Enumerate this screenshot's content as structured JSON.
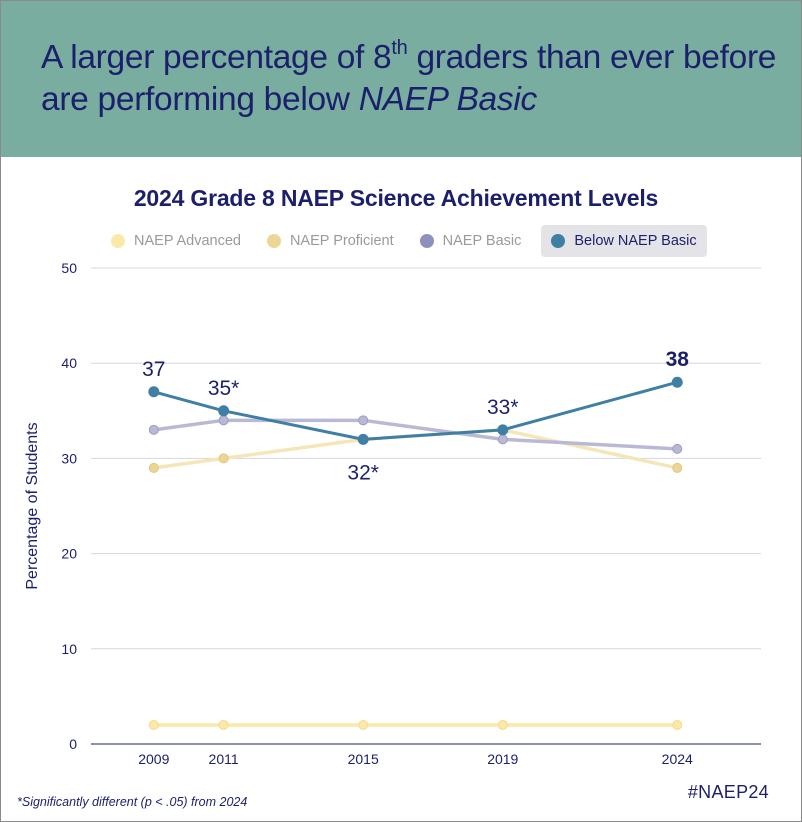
{
  "headline": {
    "part1": "A larger percentage of 8",
    "sup": "th",
    "part2": " graders than ever before are performing below ",
    "italic": "NAEP Basic"
  },
  "footnote": "*Significantly different (p < .05) from 2024",
  "hashtag": "#NAEP24",
  "colors": {
    "banner": "#78ada0",
    "navy": "#1c1f6b",
    "advanced": "#fae9a8",
    "proficient": "#ecd695",
    "basic": "#b9b9d6",
    "below_basic": "#3f7fa3"
  },
  "chart_data": {
    "type": "line",
    "title": "2024 Grade 8 NAEP Science Achievement Levels",
    "ylabel": "Percentage of Students",
    "xlabel": "",
    "ylim": [
      0,
      50
    ],
    "yticks": [
      0,
      10,
      20,
      30,
      40,
      50
    ],
    "x": [
      2009,
      2011,
      2015,
      2019,
      2024
    ],
    "legend_position": "top",
    "highlighted_series": "Below NAEP Basic",
    "series": [
      {
        "name": "NAEP Advanced",
        "color": "#fae9a8",
        "values": [
          2,
          2,
          2,
          2,
          2
        ]
      },
      {
        "name": "NAEP Proficient",
        "color": "#ecd695",
        "values": [
          29,
          30,
          32,
          33,
          29
        ]
      },
      {
        "name": "NAEP Basic",
        "color": "#b9b9d6",
        "values": [
          33,
          34,
          34,
          32,
          31
        ]
      },
      {
        "name": "Below NAEP Basic",
        "color": "#3f7fa3",
        "values": [
          37,
          35,
          32,
          33,
          38
        ]
      }
    ],
    "data_labels": [
      {
        "series": "Below NAEP Basic",
        "x": 2009,
        "text": "37",
        "position": "above",
        "bold": false
      },
      {
        "series": "Below NAEP Basic",
        "x": 2011,
        "text": "35*",
        "position": "above",
        "bold": false
      },
      {
        "series": "Below NAEP Basic",
        "x": 2015,
        "text": "32*",
        "position": "below",
        "bold": false
      },
      {
        "series": "Below NAEP Basic",
        "x": 2019,
        "text": "33*",
        "position": "above",
        "bold": false
      },
      {
        "series": "Below NAEP Basic",
        "x": 2024,
        "text": "38",
        "position": "above",
        "bold": true
      }
    ]
  }
}
